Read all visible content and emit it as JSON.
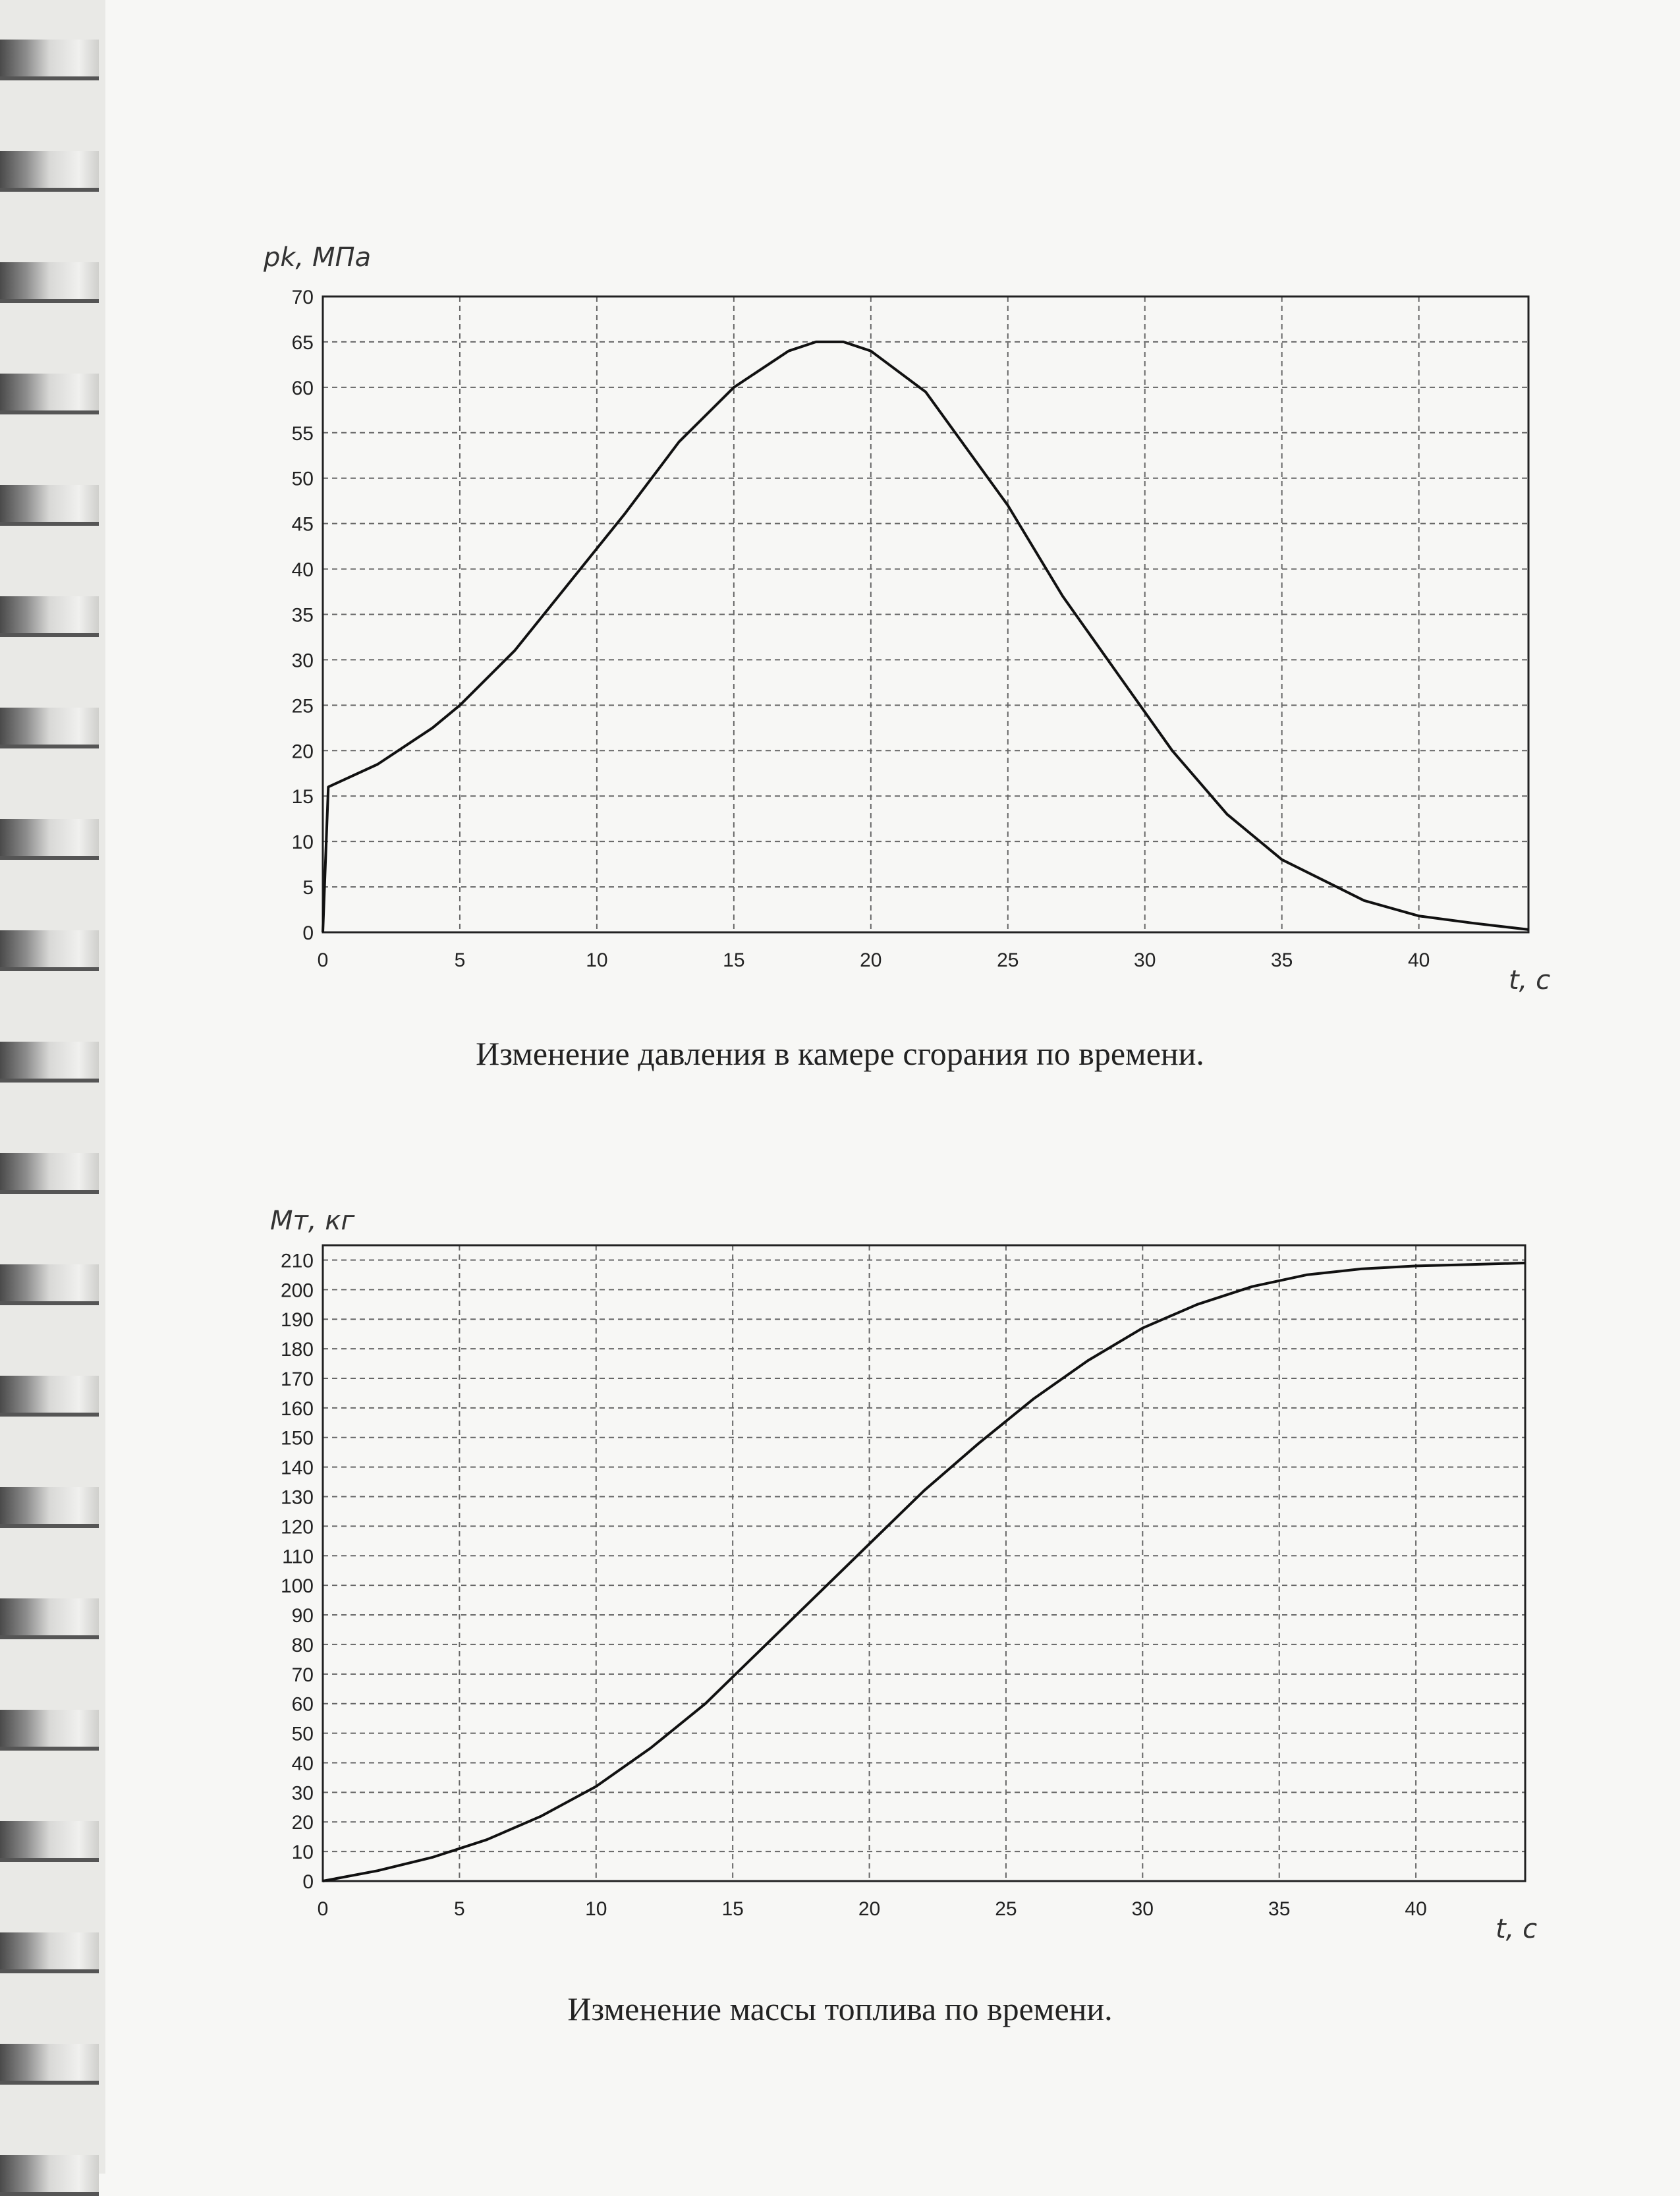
{
  "chart_data": [
    {
      "type": "line",
      "title": "",
      "caption": "Изменение давления в камере сгорания по времени.",
      "xlabel": "t, c",
      "ylabel": "pk, МПа",
      "xlim": [
        0,
        44
      ],
      "ylim": [
        0,
        70
      ],
      "xticks": [
        0,
        5,
        10,
        15,
        20,
        25,
        30,
        35,
        40
      ],
      "yticks": [
        0,
        5,
        10,
        15,
        20,
        25,
        30,
        35,
        40,
        45,
        50,
        55,
        60,
        65,
        70
      ],
      "grid": true,
      "series": [
        {
          "x": [
            0,
            0.2,
            2,
            4,
            5,
            7,
            9,
            11,
            13,
            15,
            17,
            18,
            19,
            20,
            22,
            25,
            27,
            29,
            31,
            33,
            35,
            37,
            38,
            40,
            42,
            44
          ],
          "y": [
            0,
            16,
            18.5,
            22.5,
            25,
            31,
            38.5,
            46,
            54,
            60,
            64,
            65,
            65,
            64,
            59.5,
            47,
            37,
            28.5,
            20,
            13,
            8,
            5,
            3.5,
            1.8,
            1,
            0.3
          ]
        }
      ]
    },
    {
      "type": "line",
      "title": "",
      "caption": "Изменение массы топлива по времени.",
      "xlabel": "t, c",
      "ylabel": "Mт, кг",
      "xlim": [
        0,
        44
      ],
      "ylim": [
        0,
        215
      ],
      "xticks": [
        0,
        5,
        10,
        15,
        20,
        25,
        30,
        35,
        40
      ],
      "yticks": [
        0,
        10,
        20,
        30,
        40,
        50,
        60,
        70,
        80,
        90,
        100,
        110,
        120,
        130,
        140,
        150,
        160,
        170,
        180,
        190,
        200,
        210
      ],
      "grid": true,
      "series": [
        {
          "x": [
            0,
            2,
            4,
            6,
            8,
            10,
            12,
            14,
            16,
            18,
            20,
            22,
            24,
            26,
            28,
            30,
            32,
            34,
            36,
            38,
            40,
            42,
            44
          ],
          "y": [
            0,
            3.5,
            8,
            14,
            22,
            32,
            45,
            60,
            78,
            96,
            114,
            132,
            148,
            163,
            176,
            187,
            195,
            201,
            205,
            207,
            208,
            208.5,
            209
          ]
        }
      ]
    }
  ]
}
